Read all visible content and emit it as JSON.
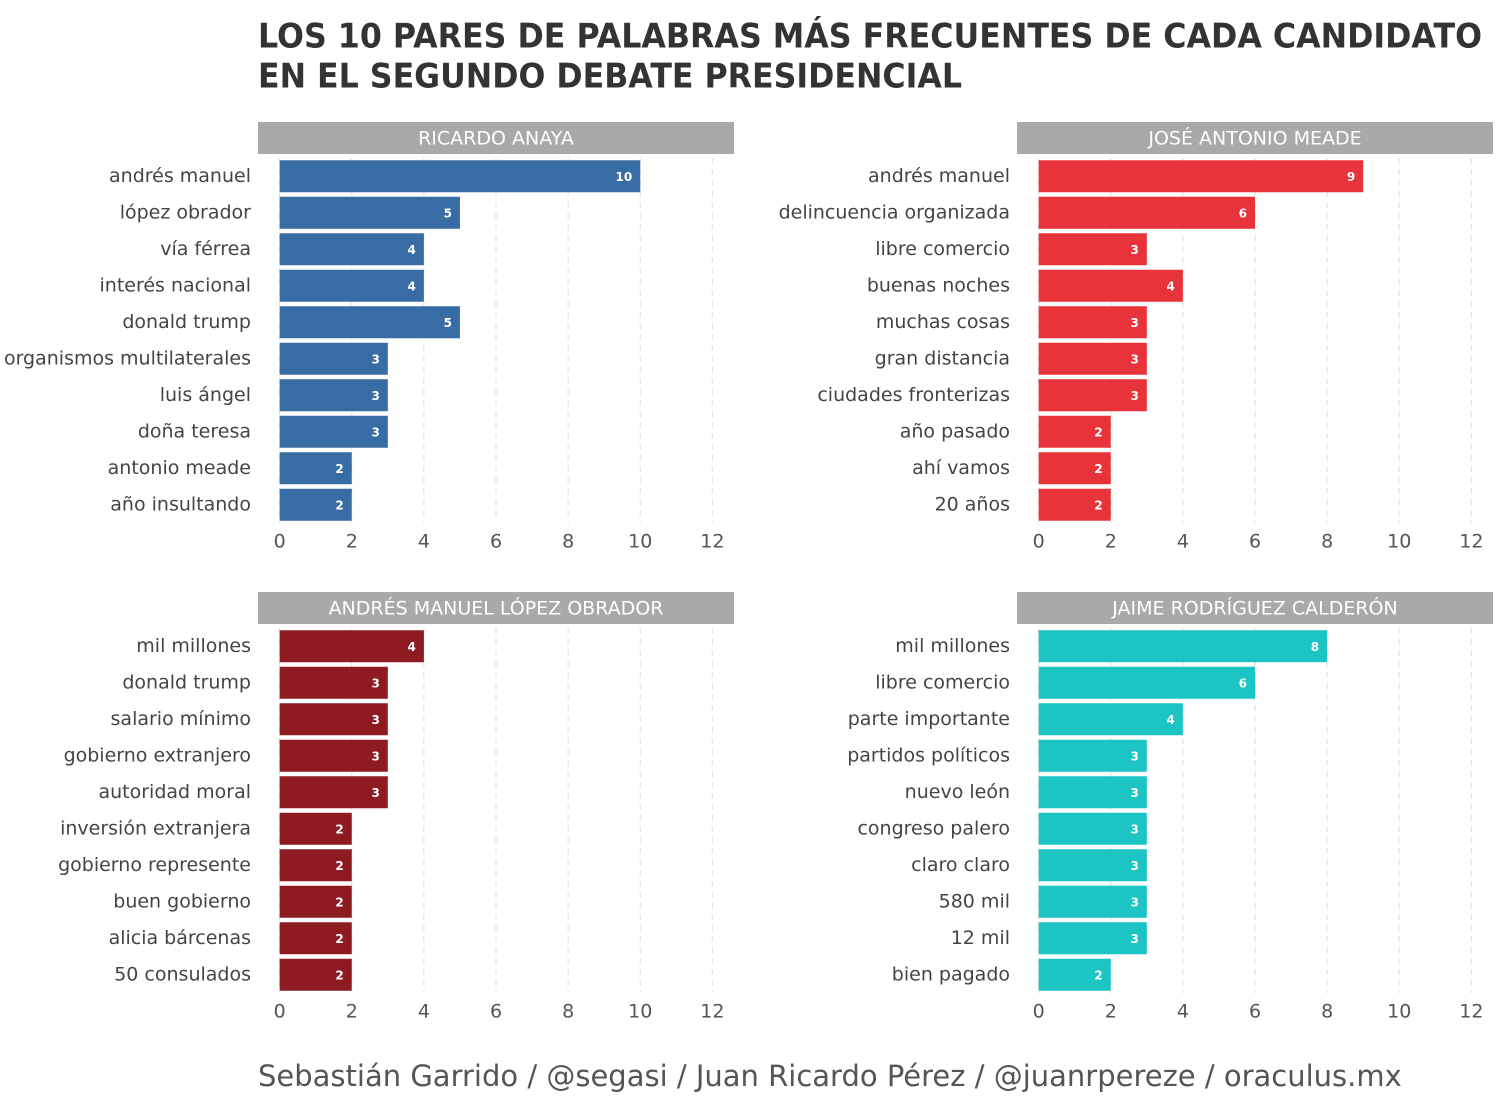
{
  "title": [
    "LOS 10 PARES DE PALABRAS MÁS FRECUENTES DE CADA CANDIDATO",
    "EN EL SEGUNDO DEBATE PRESIDENCIAL"
  ],
  "caption": "Sebastián Garrido / @segasi / Juan Ricardo Pérez / @juanrpereze / oraculus.mx",
  "chart_data": [
    {
      "type": "bar",
      "orientation": "horizontal",
      "title": "RICARDO ANAYA",
      "color": "#386ca4",
      "categories": [
        "andrés manuel",
        "lópez obrador",
        "vía férrea",
        "interés nacional",
        "donald trump",
        "organismos multilaterales",
        "luis ángel",
        "doña teresa",
        "antonio meade",
        "año insultando"
      ],
      "values": [
        10,
        5,
        4,
        4,
        5,
        3,
        3,
        3,
        2,
        2
      ],
      "xlim": [
        -0.6,
        12.6
      ],
      "xticks": [
        0,
        2,
        4,
        6,
        8,
        10,
        12
      ],
      "grid": true
    },
    {
      "type": "bar",
      "orientation": "horizontal",
      "title": "JOSÉ ANTONIO MEADE",
      "color": "#e8333a",
      "categories": [
        "andrés manuel",
        "delincuencia organizada",
        "libre comercio",
        "buenas noches",
        "muchas cosas",
        "gran distancia",
        "ciudades fronterizas",
        "año pasado",
        "ahí vamos",
        "20 años"
      ],
      "values": [
        9,
        6,
        3,
        4,
        3,
        3,
        3,
        2,
        2,
        2
      ],
      "xlim": [
        -0.6,
        12.6
      ],
      "xticks": [
        0,
        2,
        4,
        6,
        8,
        10,
        12
      ],
      "grid": true
    },
    {
      "type": "bar",
      "orientation": "horizontal",
      "title": "ANDRÉS MANUEL LÓPEZ OBRADOR",
      "color": "#8e1b22",
      "categories": [
        "mil millones",
        "donald trump",
        "salario mínimo",
        "gobierno extranjero",
        "autoridad moral",
        "inversión extranjera",
        "gobierno represente",
        "buen gobierno",
        "alicia bárcenas",
        "50 consulados"
      ],
      "values": [
        4,
        3,
        3,
        3,
        3,
        2,
        2,
        2,
        2,
        2
      ],
      "xlim": [
        -0.6,
        12.6
      ],
      "xticks": [
        0,
        2,
        4,
        6,
        8,
        10,
        12
      ],
      "grid": true
    },
    {
      "type": "bar",
      "orientation": "horizontal",
      "title": "JAIME RODRÍGUEZ CALDERÓN",
      "color": "#1cc4c4",
      "categories": [
        "mil millones",
        "libre comercio",
        "parte importante",
        "partidos políticos",
        "nuevo león",
        "congreso palero",
        "claro claro",
        "580 mil",
        "12 mil",
        "bien pagado"
      ],
      "values": [
        8,
        6,
        4,
        3,
        3,
        3,
        3,
        3,
        3,
        2
      ],
      "xlim": [
        -0.6,
        12.6
      ],
      "xticks": [
        0,
        2,
        4,
        6,
        8,
        10,
        12
      ],
      "grid": true
    }
  ]
}
